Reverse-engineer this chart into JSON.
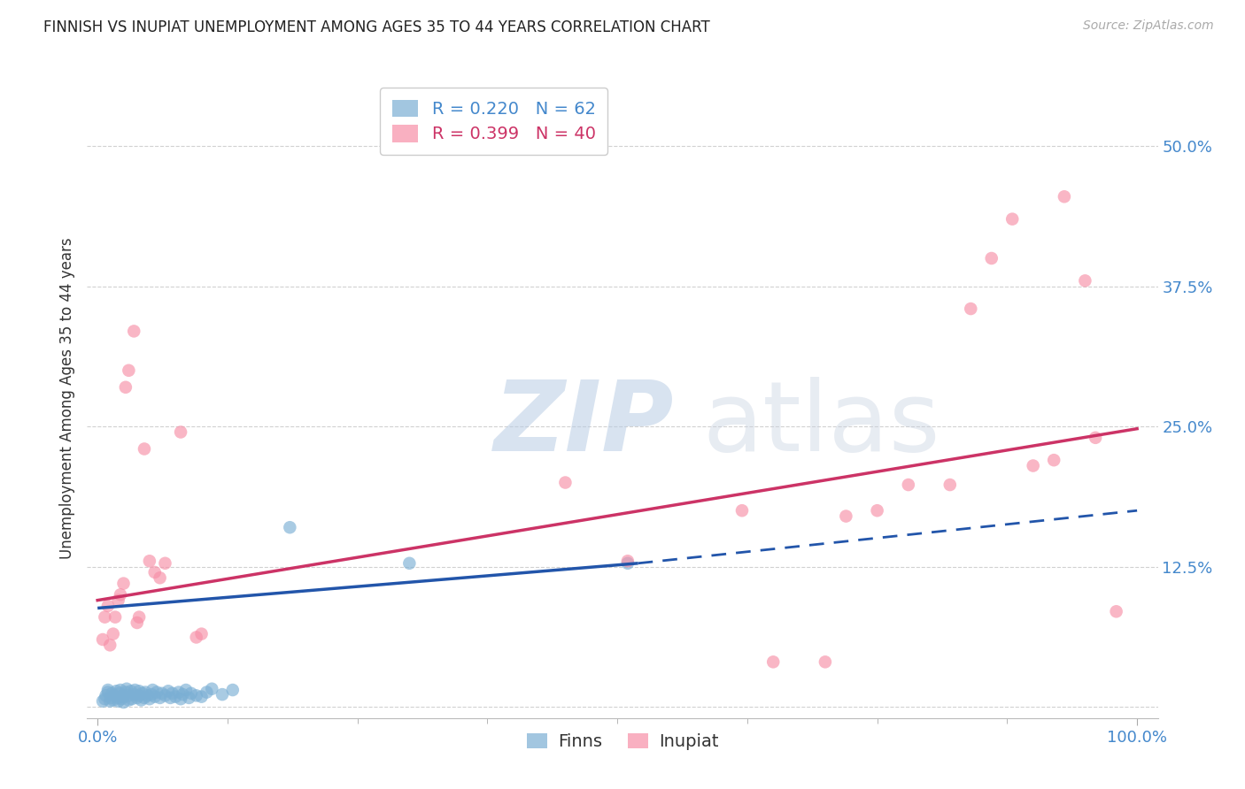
{
  "title": "FINNISH VS INUPIAT UNEMPLOYMENT AMONG AGES 35 TO 44 YEARS CORRELATION CHART",
  "source": "Source: ZipAtlas.com",
  "ylabel": "Unemployment Among Ages 35 to 44 years",
  "xlim": [
    -0.01,
    1.02
  ],
  "ylim": [
    -0.01,
    0.56
  ],
  "yticks": [
    0.0,
    0.125,
    0.25,
    0.375,
    0.5
  ],
  "ytick_labels": [
    "",
    "12.5%",
    "25.0%",
    "37.5%",
    "50.0%"
  ],
  "xtick_labels": [
    "0.0%",
    "100.0%"
  ],
  "finns_color": "#7bafd4",
  "inupiat_color": "#f78fa7",
  "finns_line_color": "#2255aa",
  "inupiat_line_color": "#cc3366",
  "finns_R": 0.22,
  "finns_N": 62,
  "inupiat_R": 0.399,
  "inupiat_N": 40,
  "finns_line_x0": 0.0,
  "finns_line_x1": 0.52,
  "finns_line_x2": 1.0,
  "finns_line_y0": 0.088,
  "finns_line_y1": 0.128,
  "finns_line_y2": 0.175,
  "inupiat_line_x0": 0.0,
  "inupiat_line_x1": 1.0,
  "inupiat_line_y0": 0.095,
  "inupiat_line_y1": 0.248,
  "finns_x": [
    0.005,
    0.007,
    0.008,
    0.01,
    0.01,
    0.012,
    0.013,
    0.014,
    0.015,
    0.016,
    0.018,
    0.02,
    0.02,
    0.021,
    0.022,
    0.023,
    0.024,
    0.025,
    0.025,
    0.027,
    0.028,
    0.03,
    0.03,
    0.032,
    0.033,
    0.035,
    0.036,
    0.038,
    0.04,
    0.04,
    0.042,
    0.043,
    0.045,
    0.046,
    0.048,
    0.05,
    0.052,
    0.053,
    0.055,
    0.057,
    0.06,
    0.062,
    0.065,
    0.068,
    0.07,
    0.072,
    0.075,
    0.078,
    0.08,
    0.082,
    0.085,
    0.088,
    0.09,
    0.095,
    0.1,
    0.105,
    0.11,
    0.12,
    0.13,
    0.185,
    0.3,
    0.51
  ],
  "finns_y": [
    0.005,
    0.007,
    0.01,
    0.013,
    0.015,
    0.005,
    0.008,
    0.012,
    0.006,
    0.01,
    0.014,
    0.005,
    0.008,
    0.012,
    0.015,
    0.007,
    0.01,
    0.004,
    0.009,
    0.013,
    0.016,
    0.006,
    0.01,
    0.014,
    0.007,
    0.011,
    0.015,
    0.008,
    0.01,
    0.014,
    0.006,
    0.012,
    0.008,
    0.013,
    0.01,
    0.007,
    0.011,
    0.015,
    0.009,
    0.013,
    0.008,
    0.012,
    0.01,
    0.014,
    0.008,
    0.012,
    0.009,
    0.013,
    0.007,
    0.011,
    0.015,
    0.008,
    0.012,
    0.01,
    0.009,
    0.013,
    0.016,
    0.011,
    0.015,
    0.16,
    0.128,
    0.128
  ],
  "inupiat_x": [
    0.005,
    0.007,
    0.01,
    0.012,
    0.015,
    0.017,
    0.02,
    0.022,
    0.025,
    0.027,
    0.03,
    0.035,
    0.038,
    0.04,
    0.045,
    0.05,
    0.055,
    0.06,
    0.065,
    0.08,
    0.095,
    0.1,
    0.45,
    0.51,
    0.62,
    0.65,
    0.7,
    0.72,
    0.75,
    0.78,
    0.82,
    0.84,
    0.86,
    0.88,
    0.9,
    0.92,
    0.93,
    0.95,
    0.96,
    0.98
  ],
  "inupiat_y": [
    0.06,
    0.08,
    0.09,
    0.055,
    0.065,
    0.08,
    0.095,
    0.1,
    0.11,
    0.285,
    0.3,
    0.335,
    0.075,
    0.08,
    0.23,
    0.13,
    0.12,
    0.115,
    0.128,
    0.245,
    0.062,
    0.065,
    0.2,
    0.13,
    0.175,
    0.04,
    0.04,
    0.17,
    0.175,
    0.198,
    0.198,
    0.355,
    0.4,
    0.435,
    0.215,
    0.22,
    0.455,
    0.38,
    0.24,
    0.085
  ]
}
